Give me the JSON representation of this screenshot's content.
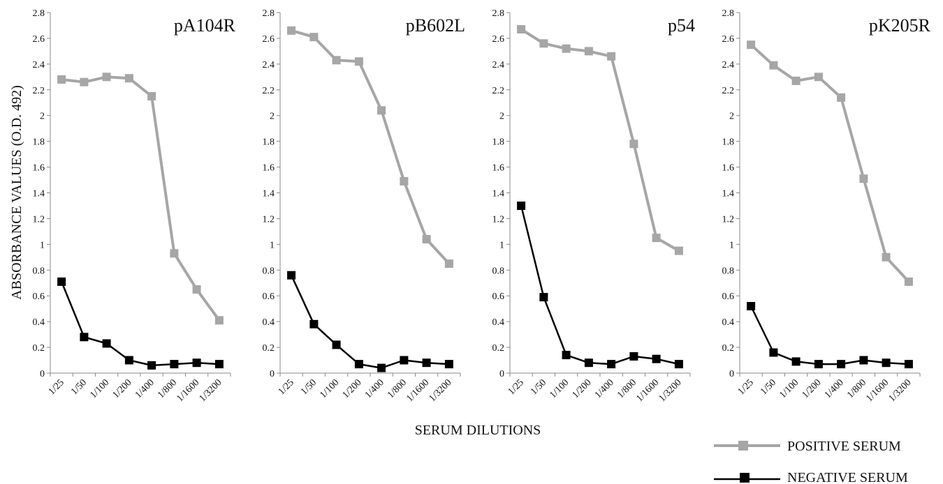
{
  "figure": {
    "ylabel": "ABSORBANCE VALUES (O.D. 492)",
    "xlabel": "SERUM DILUTIONS"
  },
  "legend": {
    "positive_label": "POSITIVE SERUM",
    "negative_label": "NEGATIVE SERUM"
  },
  "colors": {
    "positive": "#a6a6a6",
    "negative": "#000000",
    "axis": "#888888"
  },
  "chart_data": [
    {
      "type": "line",
      "title": "pA104R",
      "categories": [
        "1/25",
        "1/50",
        "1/100",
        "1/200",
        "1/400",
        "1/800",
        "1/1600",
        "1/3200"
      ],
      "ylim": [
        0,
        2.8
      ],
      "yticks": [
        "0",
        "0.2",
        "0.4",
        "0.6",
        "0.8",
        "1",
        "1.2",
        "1.4",
        "1.6",
        "1.8",
        "2",
        "2.2",
        "2.4",
        "2.6",
        "2.8"
      ],
      "grid": false,
      "series": [
        {
          "name": "POSITIVE SERUM",
          "values": [
            2.28,
            2.26,
            2.3,
            2.29,
            2.15,
            0.93,
            0.65,
            0.41
          ]
        },
        {
          "name": "NEGATIVE SERUM",
          "values": [
            0.71,
            0.28,
            0.23,
            0.1,
            0.06,
            0.07,
            0.08,
            0.07
          ]
        }
      ]
    },
    {
      "type": "line",
      "title": "pB602L",
      "categories": [
        "1/25",
        "1/50",
        "1/100",
        "1/200",
        "1/400",
        "1/800",
        "1/1600",
        "1/3200"
      ],
      "ylim": [
        0,
        2.8
      ],
      "yticks": [
        "0",
        "0.2",
        "0.4",
        "0.6",
        "0.8",
        "1",
        "1.2",
        "1.4",
        "1.6",
        "1.8",
        "2",
        "2.2",
        "2.4",
        "2.6",
        "2.8"
      ],
      "grid": false,
      "series": [
        {
          "name": "POSITIVE SERUM",
          "values": [
            2.66,
            2.61,
            2.43,
            2.42,
            2.04,
            1.49,
            1.04,
            0.85
          ]
        },
        {
          "name": "NEGATIVE SERUM",
          "values": [
            0.76,
            0.38,
            0.22,
            0.07,
            0.04,
            0.1,
            0.08,
            0.07
          ]
        }
      ]
    },
    {
      "type": "line",
      "title": "p54",
      "categories": [
        "1/25",
        "1/50",
        "1/100",
        "1/200",
        "1/400",
        "1/800",
        "1/1600",
        "1/3200"
      ],
      "ylim": [
        0,
        2.8
      ],
      "yticks": [
        "0",
        "0.2",
        "0.4",
        "0.6",
        "0.8",
        "1",
        "1.2",
        "1.4",
        "1.6",
        "1.8",
        "2",
        "2.2",
        "2.4",
        "2.6",
        "2.8"
      ],
      "grid": false,
      "series": [
        {
          "name": "POSITIVE SERUM",
          "values": [
            2.67,
            2.56,
            2.52,
            2.5,
            2.46,
            1.78,
            1.05,
            0.95
          ]
        },
        {
          "name": "NEGATIVE SERUM",
          "values": [
            1.3,
            0.59,
            0.14,
            0.08,
            0.07,
            0.13,
            0.11,
            0.07
          ]
        }
      ]
    },
    {
      "type": "line",
      "title": "pK205R",
      "categories": [
        "1/25",
        "1/50",
        "1/100",
        "1/200",
        "1/400",
        "1/800",
        "1/1600",
        "1/3200"
      ],
      "ylim": [
        0,
        2.8
      ],
      "yticks": [
        "0",
        "0.2",
        "0.4",
        "0.6",
        "0.8",
        "1",
        "1.2",
        "1.4",
        "1.6",
        "1.8",
        "2",
        "2.2",
        "2.4",
        "2.6",
        "2.8"
      ],
      "grid": false,
      "series": [
        {
          "name": "POSITIVE SERUM",
          "values": [
            2.55,
            2.39,
            2.27,
            2.3,
            2.14,
            1.51,
            0.9,
            0.71
          ]
        },
        {
          "name": "NEGATIVE SERUM",
          "values": [
            0.52,
            0.16,
            0.09,
            0.07,
            0.07,
            0.1,
            0.08,
            0.07
          ]
        }
      ]
    }
  ]
}
